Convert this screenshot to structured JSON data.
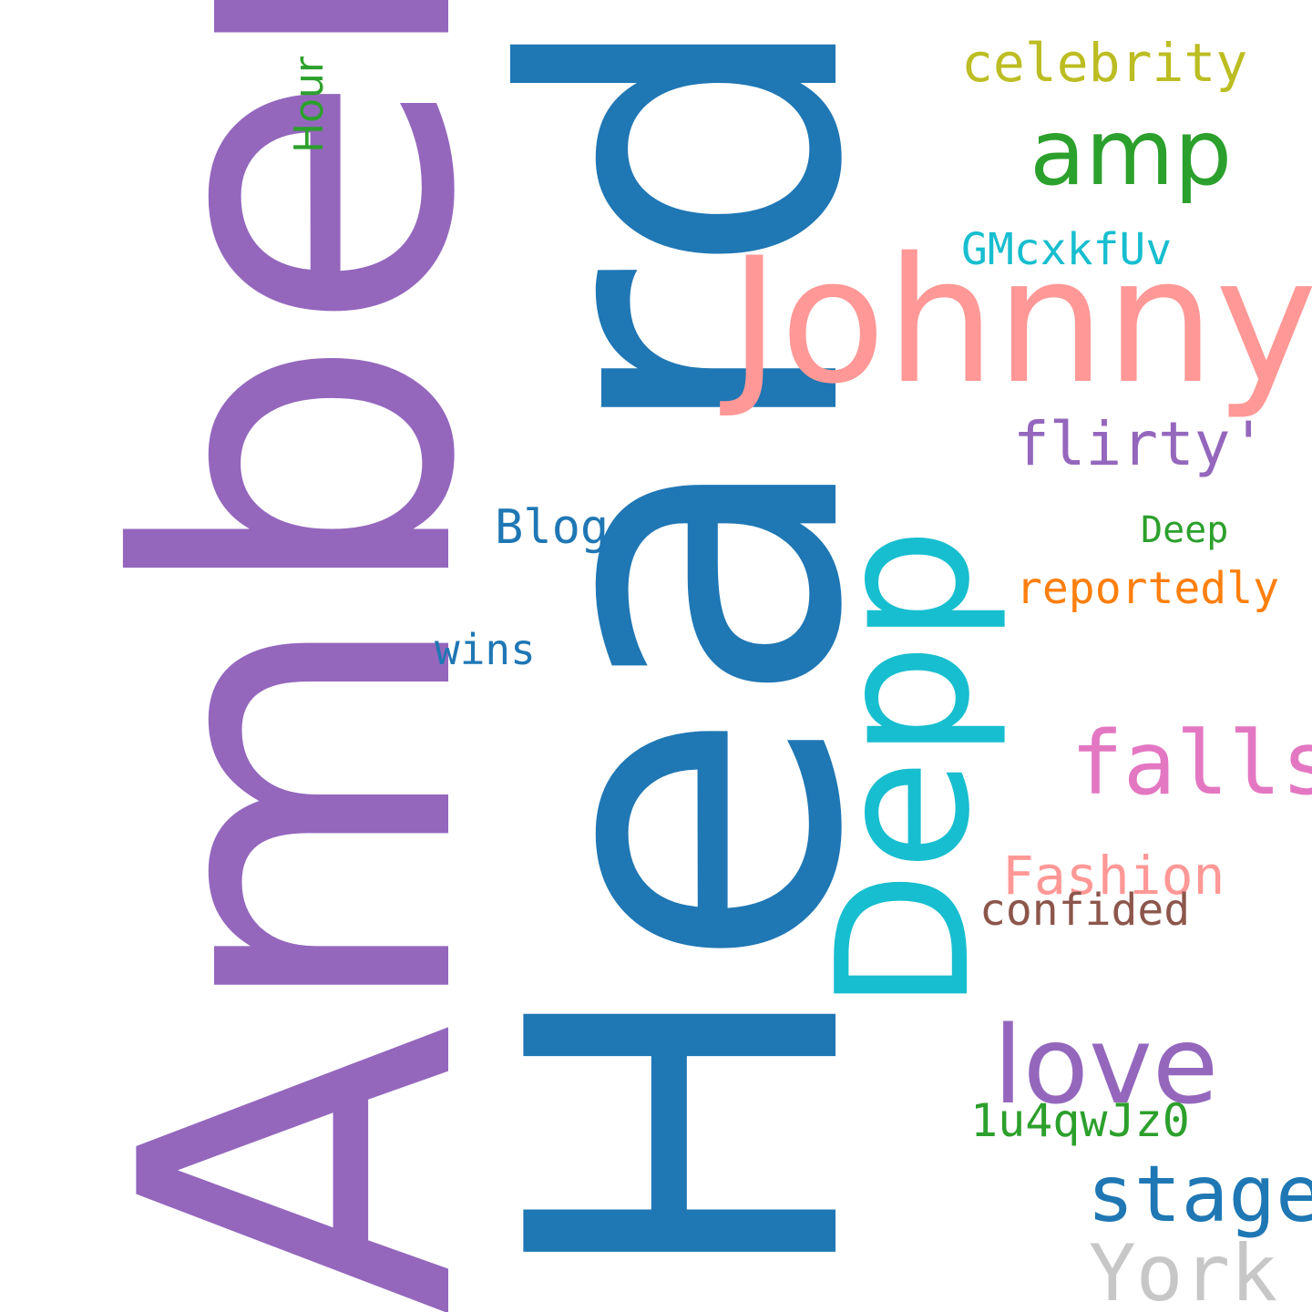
{
  "words": {
    "amber": {
      "text": "Amber",
      "color": "#9467bd"
    },
    "heard": {
      "text": "Heard",
      "color": "#1f77b4"
    },
    "depp": {
      "text": "Depp",
      "color": "#17becf"
    },
    "hour": {
      "text": "Hour",
      "color": "#2ca02c"
    },
    "johnny": {
      "text": "Johnny",
      "color": "#ff9896"
    },
    "celebrity": {
      "text": "celebrity",
      "color": "#bcbd22"
    },
    "amp": {
      "text": "amp",
      "color": "#2ca02c"
    },
    "gmcxkfuv": {
      "text": "GMcxkfUv",
      "color": "#17becf"
    },
    "flirty": {
      "text": "flirty'",
      "color": "#9467bd"
    },
    "blog": {
      "text": "Blog",
      "color": "#1f77b4"
    },
    "deep": {
      "text": "Deep",
      "color": "#2ca02c"
    },
    "reportedly": {
      "text": "reportedly",
      "color": "#ff7f0e"
    },
    "wins": {
      "text": "wins",
      "color": "#1f77b4"
    },
    "falls": {
      "text": "falls",
      "color": "#e377c2"
    },
    "fashion": {
      "text": "Fashion",
      "color": "#ff9896"
    },
    "confided": {
      "text": "confided",
      "color": "#8c564b"
    },
    "love": {
      "text": "love",
      "color": "#9467bd"
    },
    "code": {
      "text": "1u4qwJz0",
      "color": "#2ca02c"
    },
    "stage": {
      "text": "stage",
      "color": "#1f77b4"
    },
    "york": {
      "text": "York",
      "color": "#c7c7c7"
    }
  }
}
